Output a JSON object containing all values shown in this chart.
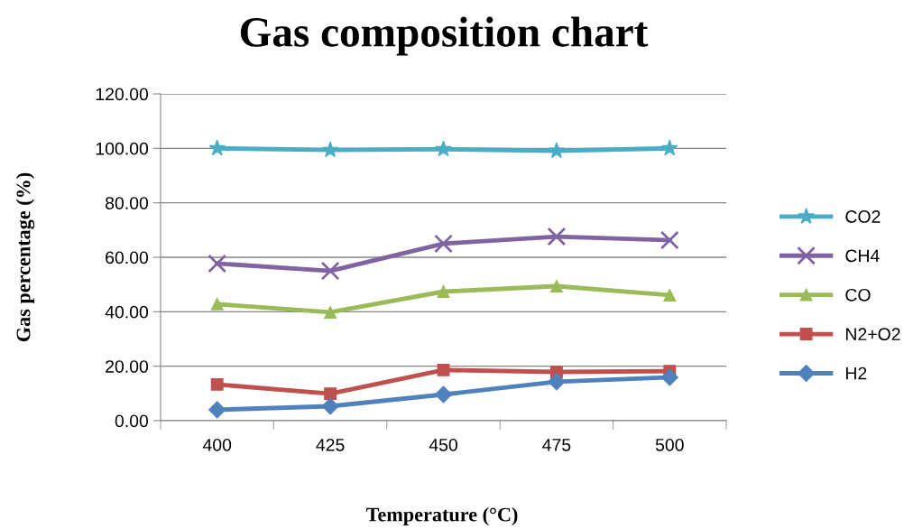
{
  "chart_data": {
    "type": "line",
    "title": "Gas composition chart",
    "xlabel": "Temperature (°C)",
    "ylabel": "Gas percentage (%)",
    "categories": [
      "400",
      "425",
      "450",
      "475",
      "500"
    ],
    "series": [
      {
        "name": "CO2",
        "color": "#4bacc6",
        "marker": "star",
        "values": [
          100.0,
          99.4,
          99.7,
          99.1,
          100.0
        ]
      },
      {
        "name": "CH4",
        "color": "#8064a2",
        "marker": "cross",
        "values": [
          57.7,
          55.0,
          65.0,
          67.6,
          66.3
        ]
      },
      {
        "name": "CO",
        "color": "#9bbb59",
        "marker": "triangle",
        "values": [
          42.8,
          39.8,
          47.4,
          49.4,
          46.1
        ]
      },
      {
        "name": "N2+O2",
        "color": "#c0504d",
        "marker": "square",
        "values": [
          13.3,
          9.9,
          18.6,
          17.9,
          18.2
        ]
      },
      {
        "name": "H2",
        "color": "#4f81bd",
        "marker": "diamond",
        "values": [
          4.0,
          5.3,
          9.6,
          14.3,
          15.9
        ]
      }
    ],
    "ylim": [
      0,
      120
    ],
    "yticks": [
      {
        "value": 0,
        "label": "0.00"
      },
      {
        "value": 20,
        "label": "20.00"
      },
      {
        "value": 40,
        "label": "40.00"
      },
      {
        "value": 60,
        "label": "60.00"
      },
      {
        "value": 80,
        "label": "80.00"
      },
      {
        "value": 100,
        "label": "100.00"
      },
      {
        "value": 120,
        "label": "120.00"
      }
    ],
    "grid": "y",
    "legend": "right",
    "line_style": "solid"
  }
}
